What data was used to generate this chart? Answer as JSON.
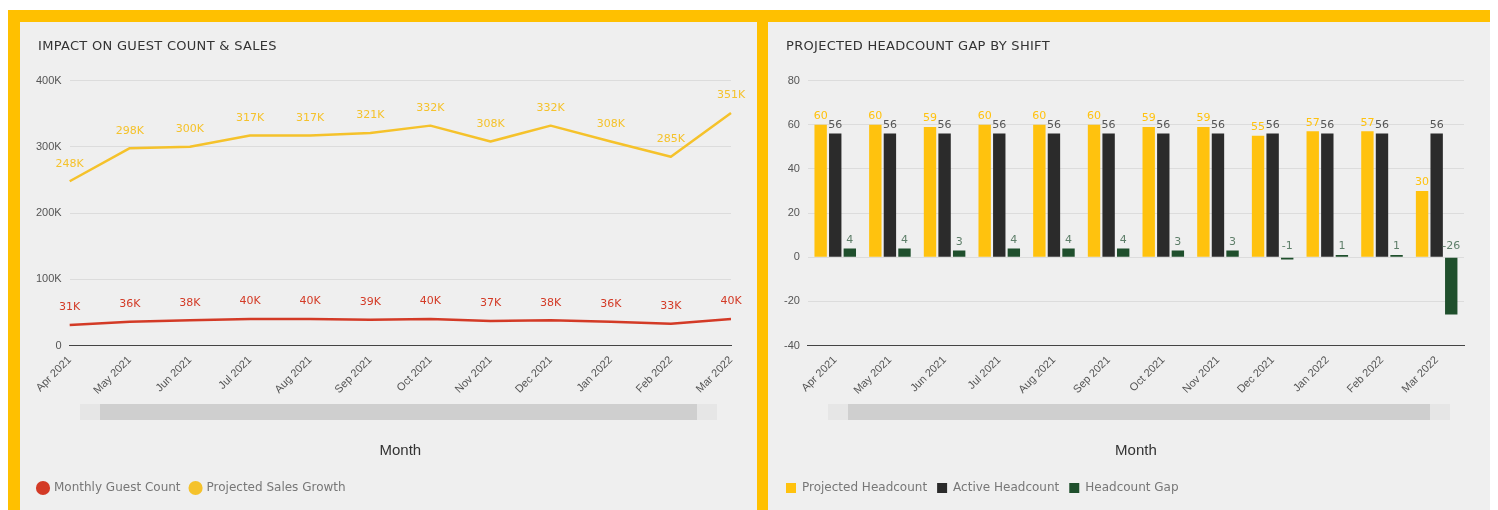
{
  "chart_data": [
    {
      "type": "line",
      "title": "IMPACT ON GUEST COUNT & SALES",
      "xlabel": "Month",
      "categories": [
        "Apr 2021",
        "May 2021",
        "Jun 2021",
        "Jul 2021",
        "Aug 2021",
        "Sep 2021",
        "Oct 2021",
        "Nov 2021",
        "Dec 2021",
        "Jan 2022",
        "Feb 2022",
        "Mar 2022"
      ],
      "series": [
        {
          "name": "Monthly Guest Count",
          "color": "#d33a26",
          "values": [
            31000,
            36000,
            38000,
            40000,
            40000,
            39000,
            40000,
            37000,
            38000,
            36000,
            33000,
            40000
          ],
          "value_labels": [
            "31K",
            "36K",
            "38K",
            "40K",
            "40K",
            "39K",
            "40K",
            "37K",
            "38K",
            "36K",
            "33K",
            "40K"
          ]
        },
        {
          "name": "Projected Sales Growth",
          "color": "#f5c22b",
          "values": [
            248000,
            298000,
            300000,
            317000,
            317000,
            321000,
            332000,
            308000,
            332000,
            308000,
            285000,
            351000
          ],
          "value_labels": [
            "248K",
            "298K",
            "300K",
            "317K",
            "317K",
            "321K",
            "332K",
            "308K",
            "332K",
            "308K",
            "285K",
            "351K"
          ]
        }
      ],
      "ylim": [
        0,
        400000
      ],
      "yticks": [
        0,
        {
          "value": 100000,
          "label": "100K"
        },
        {
          "value": 200000,
          "label": "200K"
        },
        {
          "value": 300000,
          "label": "300K"
        },
        {
          "value": 400000,
          "label": "400K"
        }
      ],
      "grid": "y",
      "legend": "bottom",
      "marker": "none",
      "line_style": "solid"
    },
    {
      "type": "bar",
      "title": "PROJECTED HEADCOUNT GAP BY SHIFT",
      "xlabel": "Month",
      "categories": [
        "Apr 2021",
        "May 2021",
        "Jun 2021",
        "Jul 2021",
        "Aug 2021",
        "Sep 2021",
        "Oct 2021",
        "Nov 2021",
        "Dec 2021",
        "Jan 2022",
        "Feb 2022",
        "Mar 2022"
      ],
      "series": [
        {
          "name": "Projected Headcount",
          "color": "#ffc20e",
          "values": [
            60,
            60,
            59,
            60,
            60,
            60,
            59,
            59,
            55,
            57,
            57,
            30
          ]
        },
        {
          "name": "Active Headcount",
          "color": "#2b2b2b",
          "values": [
            56,
            56,
            56,
            56,
            56,
            56,
            56,
            56,
            56,
            56,
            56,
            56
          ]
        },
        {
          "name": "Headcount Gap",
          "color": "#1f4f2c",
          "values": [
            4,
            4,
            3,
            4,
            4,
            4,
            3,
            3,
            -1,
            1,
            1,
            -26
          ]
        }
      ],
      "ylim": [
        -40,
        80
      ],
      "yticks": [
        -40,
        -20,
        0,
        20,
        40,
        60,
        80
      ],
      "grid": "y",
      "legend": "bottom",
      "data_labels": true
    }
  ]
}
